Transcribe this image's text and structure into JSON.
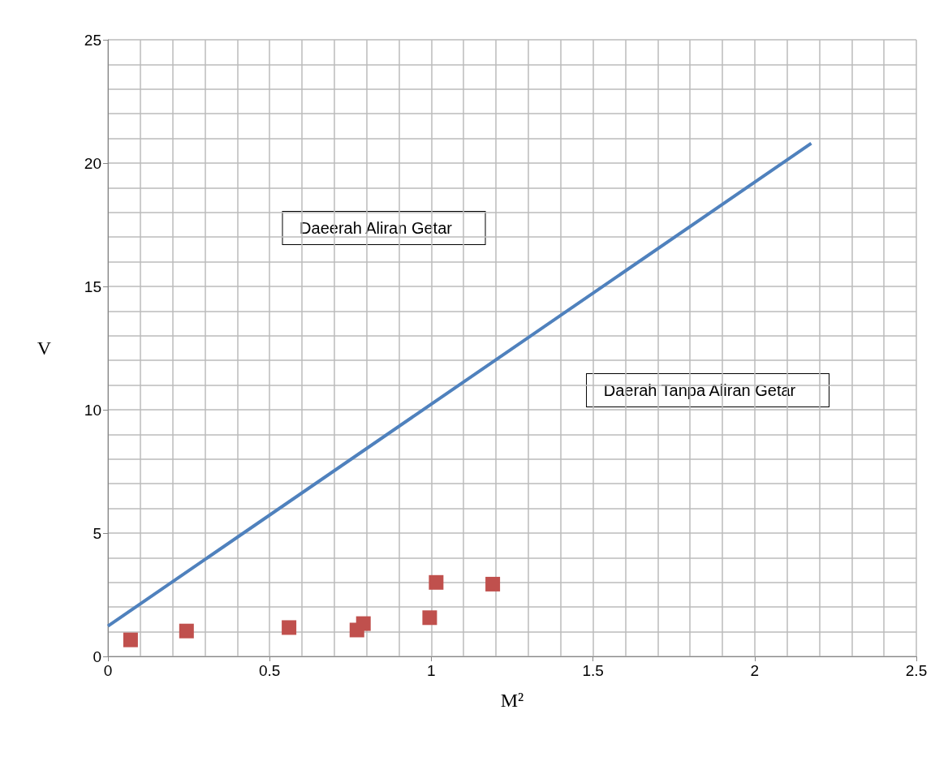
{
  "chart_data": {
    "type": "scatter",
    "xlabel": "M²",
    "ylabel": "V",
    "xlim": [
      0,
      2.5
    ],
    "xticks": [
      0,
      0.5,
      1,
      1.5,
      2,
      2.5
    ],
    "ylim": [
      0,
      25
    ],
    "yticks": [
      0,
      5,
      10,
      15,
      20,
      25
    ],
    "grid": true,
    "series": [
      {
        "marker": "square",
        "color": "#c0504d",
        "x": [
          0.07,
          0.243,
          0.56,
          0.77,
          0.79,
          0.995,
          1.015,
          1.19
        ],
        "values": [
          0.67,
          1.03,
          1.17,
          1.07,
          1.33,
          1.57,
          3.0,
          2.93
        ]
      },
      {
        "type": "line",
        "color": "#4f81bd",
        "x": [
          0,
          2.175
        ],
        "values": [
          1.23,
          20.8
        ]
      }
    ],
    "annotations": [
      "Daeerah Aliran Getar",
      "Daerah Tanpa Aliran Getar"
    ]
  }
}
